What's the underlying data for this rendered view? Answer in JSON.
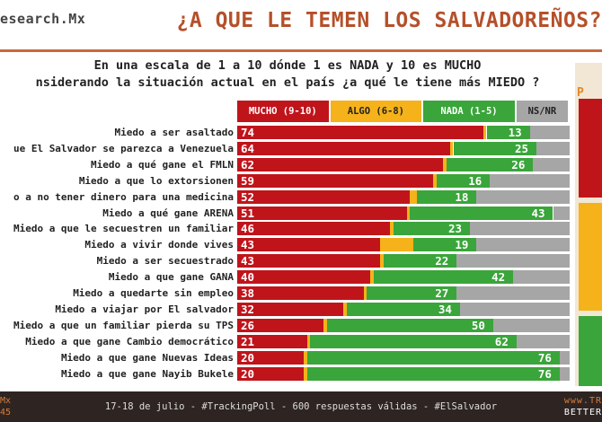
{
  "header": {
    "brand": "esearch.Mx",
    "title": "¿A QUE LE TEMEN LOS SALVADOREÑOS?"
  },
  "question": {
    "line1": "En una escala de 1 a 10 dónde 1 es NADA y 10 es MUCHO",
    "line2": "nsiderando la situación actual en el país ¿a qué le tiene más MIEDO ?"
  },
  "side_panel": {
    "label": "P"
  },
  "footer": {
    "left1": "Mx",
    "left2": "45",
    "center": "17-18 de julio - #TrackingPoll - 600 respuestas válidas - #ElSalvador",
    "right1": "www.TR",
    "right2": "BETTER"
  },
  "colors": {
    "mucho": "#c0141b",
    "algo": "#f5b21a",
    "nada": "#3aa53a",
    "nsnr": "#a6a6a6",
    "title": "#b5502a"
  },
  "chart_data": {
    "type": "bar",
    "orientation": "horizontal",
    "stacked": true,
    "legend_position": "top",
    "legend": [
      "MUCHO (9-10)",
      "ALGO (6-8)",
      "NADA (1-5)",
      "NS/NR"
    ],
    "categories": [
      "Miedo a ser asaltado",
      "ue El Salvador se parezca a Venezuela",
      "Miedo a qué gane el FMLN",
      "Miedo a que lo extorsionen",
      "o a no tener dinero para una medicina",
      "Miedo a qué gane ARENA",
      "Miedo a que le secuestren un familiar",
      "Miedo a vivir donde vives",
      "Miedo a ser secuestrado",
      "Miedo a que gane GANA",
      "Miedo a quedarte sin empleo",
      "Miedo a viajar por El salvador",
      "Miedo a que un familiar pierda su TPS",
      "Miedo a que gane Cambio democrático",
      "Miedo a que gane Nuevas Ideas",
      "Miedo a que gane Nayib Bukele"
    ],
    "series": [
      {
        "name": "MUCHO (9-10)",
        "values": [
          74,
          64,
          62,
          59,
          52,
          51,
          46,
          43,
          43,
          40,
          38,
          32,
          26,
          21,
          20,
          20
        ]
      },
      {
        "name": "ALGO (6-8)",
        "values": [
          1,
          1,
          1,
          1,
          2,
          1,
          1,
          10,
          1,
          1,
          1,
          1,
          1,
          1,
          1,
          1
        ]
      },
      {
        "name": "NADA (1-5)",
        "values": [
          13,
          25,
          26,
          16,
          18,
          43,
          23,
          19,
          22,
          42,
          27,
          34,
          50,
          62,
          76,
          76
        ]
      },
      {
        "name": "NS/NR",
        "values": [
          12,
          10,
          11,
          24,
          28,
          5,
          30,
          28,
          34,
          17,
          34,
          33,
          23,
          16,
          3,
          3
        ]
      }
    ],
    "shown_labels": {
      "MUCHO (9-10)": [
        74,
        64,
        62,
        59,
        52,
        51,
        46,
        43,
        43,
        40,
        38,
        32,
        26,
        21,
        20,
        20
      ],
      "NADA (1-5)": [
        13,
        25,
        26,
        16,
        18,
        43,
        23,
        19,
        22,
        42,
        27,
        34,
        50,
        62,
        76,
        76
      ]
    },
    "xlim": [
      0,
      100
    ]
  }
}
